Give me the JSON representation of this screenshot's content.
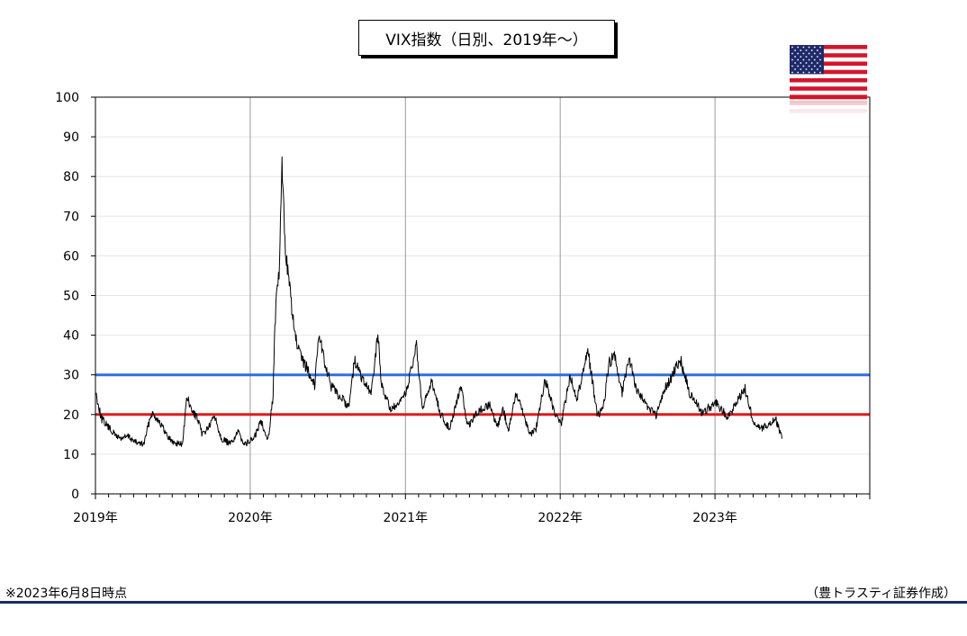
{
  "chart_data": {
    "type": "line",
    "title": "VIX指数（日別、2019年～）",
    "xlabel": "",
    "ylabel": "",
    "ylim": [
      0,
      100
    ],
    "yticks": [
      0,
      10,
      20,
      30,
      40,
      50,
      60,
      70,
      80,
      90,
      100
    ],
    "xlim": [
      "2019-01-01",
      "2024-01-01"
    ],
    "x_tick_labels": [
      "2019年",
      "2020年",
      "2021年",
      "2022年",
      "2023年"
    ],
    "grid": true,
    "series": [
      {
        "color": "#000000",
        "x": [
          "2019-01-02",
          "2019-01-15",
          "2019-02-01",
          "2019-02-15",
          "2019-03-01",
          "2019-03-20",
          "2019-04-05",
          "2019-04-25",
          "2019-05-13",
          "2019-05-31",
          "2019-06-14",
          "2019-07-02",
          "2019-07-25",
          "2019-08-05",
          "2019-08-15",
          "2019-08-27",
          "2019-09-10",
          "2019-09-30",
          "2019-10-08",
          "2019-10-25",
          "2019-11-15",
          "2019-12-03",
          "2019-12-20",
          "2020-01-10",
          "2020-01-27",
          "2020-02-12",
          "2020-02-24",
          "2020-02-27",
          "2020-03-05",
          "2020-03-09",
          "2020-03-16",
          "2020-03-18",
          "2020-03-24",
          "2020-04-01",
          "2020-04-15",
          "2020-04-30",
          "2020-05-15",
          "2020-06-01",
          "2020-06-11",
          "2020-06-25",
          "2020-07-10",
          "2020-07-31",
          "2020-08-20",
          "2020-09-03",
          "2020-09-23",
          "2020-10-12",
          "2020-10-28",
          "2020-11-05",
          "2020-11-25",
          "2020-12-15",
          "2021-01-05",
          "2021-01-27",
          "2021-02-10",
          "2021-03-04",
          "2021-03-25",
          "2021-04-15",
          "2021-05-12",
          "2021-05-28",
          "2021-06-18",
          "2021-07-19",
          "2021-08-05",
          "2021-08-19",
          "2021-09-01",
          "2021-09-20",
          "2021-10-04",
          "2021-10-22",
          "2021-11-05",
          "2021-11-26",
          "2021-12-01",
          "2021-12-20",
          "2022-01-03",
          "2022-01-24",
          "2022-02-10",
          "2022-03-07",
          "2022-03-30",
          "2022-04-13",
          "2022-04-26",
          "2022-05-09",
          "2022-05-27",
          "2022-06-13",
          "2022-07-01",
          "2022-07-20",
          "2022-08-15",
          "2022-09-01",
          "2022-09-30",
          "2022-10-12",
          "2022-11-01",
          "2022-11-30",
          "2022-12-15",
          "2023-01-03",
          "2023-01-31",
          "2023-02-21",
          "2023-03-13",
          "2023-03-31",
          "2023-04-20",
          "2023-05-05",
          "2023-05-24",
          "2023-06-08"
        ],
        "values": [
          25.5,
          19.0,
          16.8,
          15.0,
          14.0,
          14.5,
          13.0,
          12.5,
          20.5,
          18.5,
          15.5,
          13.0,
          12.5,
          24.5,
          21.0,
          19.5,
          15.0,
          17.5,
          20.0,
          14.0,
          12.5,
          15.5,
          12.5,
          14.0,
          18.5,
          13.5,
          25.0,
          39.0,
          53.5,
          54.5,
          82.7,
          76.5,
          62.0,
          54.0,
          40.0,
          34.0,
          31.5,
          27.5,
          40.8,
          33.0,
          27.0,
          24.5,
          22.0,
          33.6,
          28.5,
          25.0,
          40.3,
          28.0,
          21.5,
          22.0,
          26.5,
          37.2,
          21.0,
          28.5,
          20.0,
          16.5,
          27.0,
          16.8,
          20.5,
          22.5,
          16.5,
          21.6,
          16.0,
          25.7,
          21.0,
          15.0,
          16.5,
          28.6,
          27.2,
          20.0,
          17.2,
          29.9,
          24.0,
          36.5,
          19.5,
          21.8,
          33.0,
          34.8,
          25.7,
          34.0,
          26.0,
          23.0,
          19.5,
          25.5,
          31.6,
          33.6,
          25.8,
          20.6,
          21.5,
          22.9,
          19.4,
          22.9,
          26.5,
          18.7,
          16.5,
          17.2,
          19.0,
          13.9
        ]
      }
    ],
    "reference_lines": [
      {
        "y": 30,
        "color": "#2f6fe0"
      },
      {
        "y": 20,
        "color": "#e11a1a"
      }
    ]
  },
  "footer": {
    "note": "※2023年6月8日時点",
    "credit": "（豊トラスティ証券作成）"
  },
  "flag_icon": "us-flag-icon"
}
